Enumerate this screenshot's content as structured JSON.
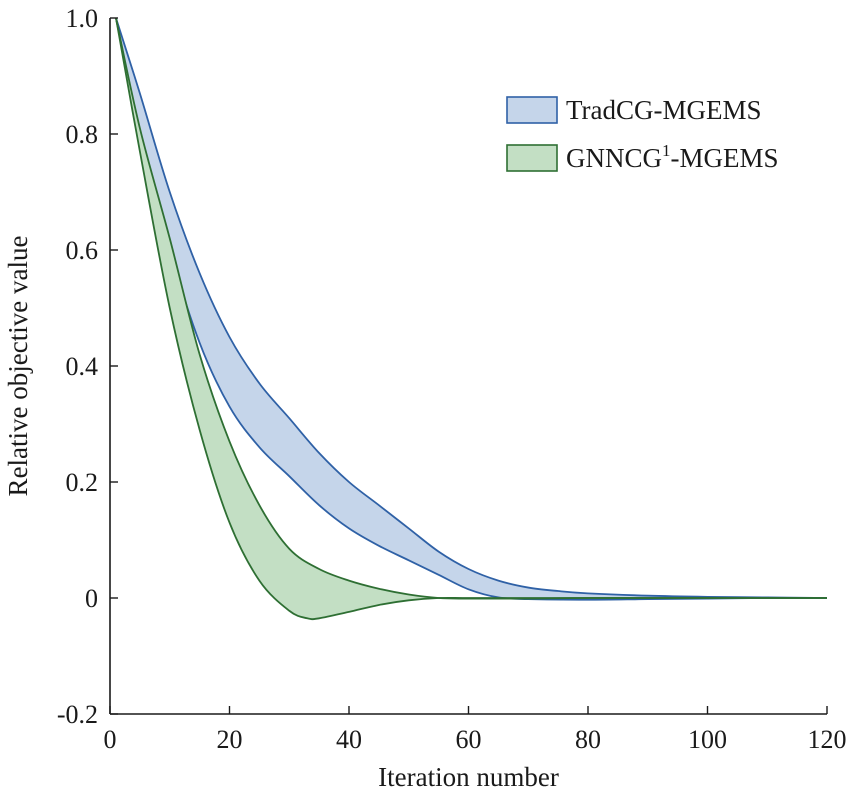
{
  "chart_data": {
    "type": "area",
    "title": "",
    "xlabel": "Iteration number",
    "ylabel": "Relative objective value",
    "xlim": [
      0,
      120
    ],
    "ylim": [
      -0.2,
      1.0
    ],
    "xticks": [
      0,
      20,
      40,
      60,
      80,
      100,
      120
    ],
    "xtick_labels": [
      "0",
      "20",
      "40",
      "60",
      "80",
      "100",
      "120"
    ],
    "yticks": [
      -0.2,
      0,
      0.2,
      0.4,
      0.6,
      0.8,
      1.0
    ],
    "ytick_labels": [
      "-0.2",
      "0",
      "0.2",
      "0.4",
      "0.6",
      "0.8",
      "1.0"
    ],
    "grid": false,
    "legend_position": "top-right",
    "series": [
      {
        "name": "TradCG-MGEMS",
        "legend_main": "TradCG-MGEMS",
        "legend_sup": "",
        "legend_suffix": "",
        "fill": "#c5d5ea",
        "stroke": "#2f61a6",
        "upper": {
          "x": [
            1,
            5,
            10,
            15,
            20,
            25,
            30,
            35,
            40,
            45,
            50,
            55,
            60,
            65,
            70,
            75,
            80,
            90,
            100,
            110,
            120
          ],
          "y": [
            1.0,
            0.87,
            0.7,
            0.56,
            0.45,
            0.37,
            0.31,
            0.25,
            0.2,
            0.16,
            0.12,
            0.08,
            0.05,
            0.03,
            0.018,
            0.012,
            0.008,
            0.004,
            0.002,
            0.001,
            0.0
          ]
        },
        "lower": {
          "x": [
            1,
            5,
            10,
            15,
            20,
            25,
            30,
            35,
            40,
            45,
            50,
            55,
            60,
            65,
            70,
            80,
            90,
            100,
            110,
            120
          ],
          "y": [
            1.0,
            0.8,
            0.6,
            0.44,
            0.33,
            0.26,
            0.21,
            0.16,
            0.12,
            0.09,
            0.065,
            0.04,
            0.015,
            0.001,
            -0.002,
            -0.003,
            -0.002,
            -0.001,
            0.0,
            0.0
          ]
        }
      },
      {
        "name": "GNNCG1-MGEMS",
        "legend_main": "GNNCG",
        "legend_sup": "1",
        "legend_suffix": "-MGEMS",
        "fill": "#c3dfc4",
        "stroke": "#2e6f33",
        "upper": {
          "x": [
            1,
            5,
            10,
            15,
            20,
            25,
            30,
            35,
            40,
            45,
            50,
            55,
            60,
            70,
            80,
            100,
            120
          ],
          "y": [
            1.0,
            0.81,
            0.62,
            0.42,
            0.27,
            0.16,
            0.085,
            0.05,
            0.03,
            0.016,
            0.006,
            0.0,
            -0.001,
            -0.001,
            0.0,
            0.0,
            0.0
          ]
        },
        "lower": {
          "x": [
            1,
            5,
            10,
            15,
            20,
            25,
            30,
            33,
            35,
            40,
            45,
            50,
            55,
            60,
            70,
            80,
            100,
            120
          ],
          "y": [
            1.0,
            0.77,
            0.5,
            0.29,
            0.13,
            0.03,
            -0.022,
            -0.035,
            -0.035,
            -0.024,
            -0.012,
            -0.004,
            0.0,
            0.0,
            0.0,
            0.0,
            0.0,
            0.0
          ]
        }
      }
    ]
  }
}
